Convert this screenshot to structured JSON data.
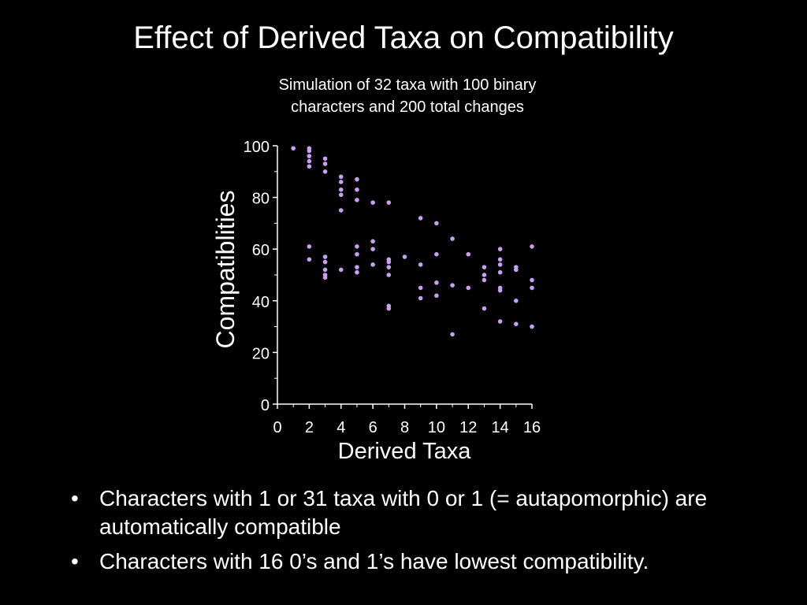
{
  "slide": {
    "title": "Effect of Derived Taxa on Compatibility",
    "subtitle_lines": [
      "Simulation of 32 taxa with 100 binary",
      "characters and 200 total changes"
    ],
    "bullets": [
      "Characters with 1 or 31 taxa with 0 or 1 (= autapomorphic) are automatically compatible",
      "Characters with 16 0’s and 1’s have lowest compatibility."
    ],
    "colors": {
      "background": "#000000",
      "text": "#ffffff",
      "points": "#c8a0f0"
    }
  },
  "chart_data": {
    "type": "scatter",
    "title": "",
    "xlabel": "Derived Taxa",
    "ylabel": "Compatiblities",
    "xlim": [
      0,
      16
    ],
    "ylim": [
      0,
      100
    ],
    "x_ticks": [
      "0",
      "2",
      "4",
      "6",
      "8",
      "10",
      "12",
      "14",
      "16"
    ],
    "y_ticks": [
      "0",
      "20",
      "40",
      "60",
      "80",
      "100"
    ],
    "grid": false,
    "points": [
      {
        "x": 1,
        "y": 99
      },
      {
        "x": 2,
        "y": 99
      },
      {
        "x": 2,
        "y": 98
      },
      {
        "x": 2,
        "y": 96
      },
      {
        "x": 2,
        "y": 94
      },
      {
        "x": 2,
        "y": 92
      },
      {
        "x": 2,
        "y": 61
      },
      {
        "x": 2,
        "y": 56
      },
      {
        "x": 3,
        "y": 95
      },
      {
        "x": 3,
        "y": 93
      },
      {
        "x": 3,
        "y": 90
      },
      {
        "x": 3,
        "y": 57
      },
      {
        "x": 3,
        "y": 55
      },
      {
        "x": 3,
        "y": 52
      },
      {
        "x": 3,
        "y": 50
      },
      {
        "x": 3,
        "y": 49
      },
      {
        "x": 4,
        "y": 88
      },
      {
        "x": 4,
        "y": 86
      },
      {
        "x": 4,
        "y": 83
      },
      {
        "x": 4,
        "y": 81
      },
      {
        "x": 4,
        "y": 75
      },
      {
        "x": 4,
        "y": 52
      },
      {
        "x": 5,
        "y": 87
      },
      {
        "x": 5,
        "y": 83
      },
      {
        "x": 5,
        "y": 79
      },
      {
        "x": 5,
        "y": 61
      },
      {
        "x": 5,
        "y": 58
      },
      {
        "x": 5,
        "y": 53
      },
      {
        "x": 5,
        "y": 51
      },
      {
        "x": 6,
        "y": 78
      },
      {
        "x": 6,
        "y": 63
      },
      {
        "x": 6,
        "y": 60
      },
      {
        "x": 6,
        "y": 54
      },
      {
        "x": 7,
        "y": 78
      },
      {
        "x": 7,
        "y": 56
      },
      {
        "x": 7,
        "y": 55
      },
      {
        "x": 7,
        "y": 53
      },
      {
        "x": 7,
        "y": 50
      },
      {
        "x": 7,
        "y": 38
      },
      {
        "x": 7,
        "y": 37
      },
      {
        "x": 8,
        "y": 57
      },
      {
        "x": 9,
        "y": 72
      },
      {
        "x": 9,
        "y": 54
      },
      {
        "x": 9,
        "y": 45
      },
      {
        "x": 9,
        "y": 41
      },
      {
        "x": 10,
        "y": 70
      },
      {
        "x": 10,
        "y": 58
      },
      {
        "x": 10,
        "y": 47
      },
      {
        "x": 10,
        "y": 42
      },
      {
        "x": 11,
        "y": 64
      },
      {
        "x": 11,
        "y": 46
      },
      {
        "x": 11,
        "y": 27
      },
      {
        "x": 12,
        "y": 58
      },
      {
        "x": 12,
        "y": 45
      },
      {
        "x": 13,
        "y": 53
      },
      {
        "x": 13,
        "y": 50
      },
      {
        "x": 13,
        "y": 48
      },
      {
        "x": 13,
        "y": 37
      },
      {
        "x": 14,
        "y": 60
      },
      {
        "x": 14,
        "y": 56
      },
      {
        "x": 14,
        "y": 54
      },
      {
        "x": 14,
        "y": 51
      },
      {
        "x": 14,
        "y": 45
      },
      {
        "x": 14,
        "y": 44
      },
      {
        "x": 14,
        "y": 32
      },
      {
        "x": 15,
        "y": 53
      },
      {
        "x": 15,
        "y": 52
      },
      {
        "x": 15,
        "y": 40
      },
      {
        "x": 15,
        "y": 31
      },
      {
        "x": 16,
        "y": 61
      },
      {
        "x": 16,
        "y": 48
      },
      {
        "x": 16,
        "y": 45
      },
      {
        "x": 16,
        "y": 30
      }
    ]
  }
}
